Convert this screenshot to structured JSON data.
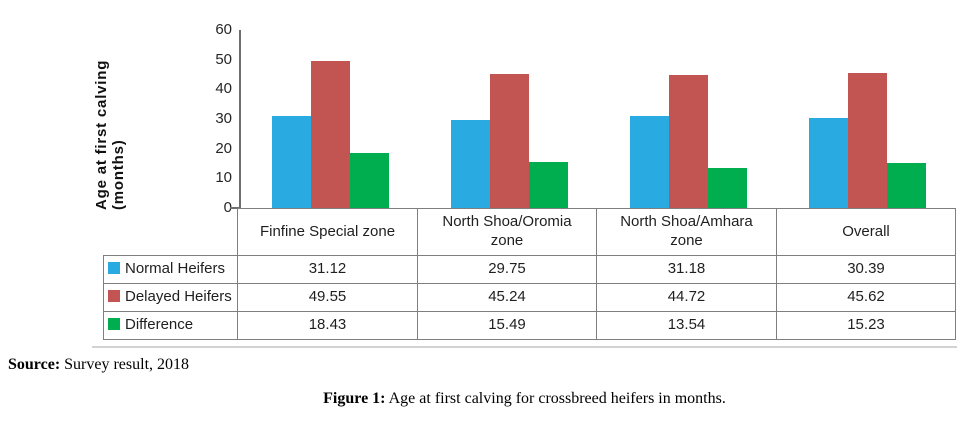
{
  "chart_data": {
    "type": "bar",
    "title": "",
    "xlabel": "",
    "ylabel": "Age at first calving (months)",
    "ylim": [
      0,
      60
    ],
    "yticks": [
      0,
      10,
      20,
      30,
      40,
      50,
      60
    ],
    "grid": false,
    "legend_position": "table-left",
    "categories": [
      "Finfine Special zone",
      "North Shoa/Oromia\nzone",
      "North Shoa/Amhara\nzone",
      "Overall"
    ],
    "series": [
      {
        "name": "Normal Heifers",
        "color": "#29ABE2",
        "values": [
          31.12,
          29.75,
          31.18,
          30.39
        ]
      },
      {
        "name": "Delayed Heifers",
        "color": "#C25551",
        "values": [
          49.55,
          45.24,
          44.72,
          45.62
        ]
      },
      {
        "name": "Difference",
        "color": "#00AE50",
        "values": [
          18.43,
          15.49,
          13.54,
          15.23
        ]
      }
    ]
  },
  "footer": {
    "source_label": "Source:",
    "source_text": " Survey result, 2018",
    "caption_label": "Figure 1:",
    "caption_text": " Age at first calving for crossbreed heifers in months."
  }
}
